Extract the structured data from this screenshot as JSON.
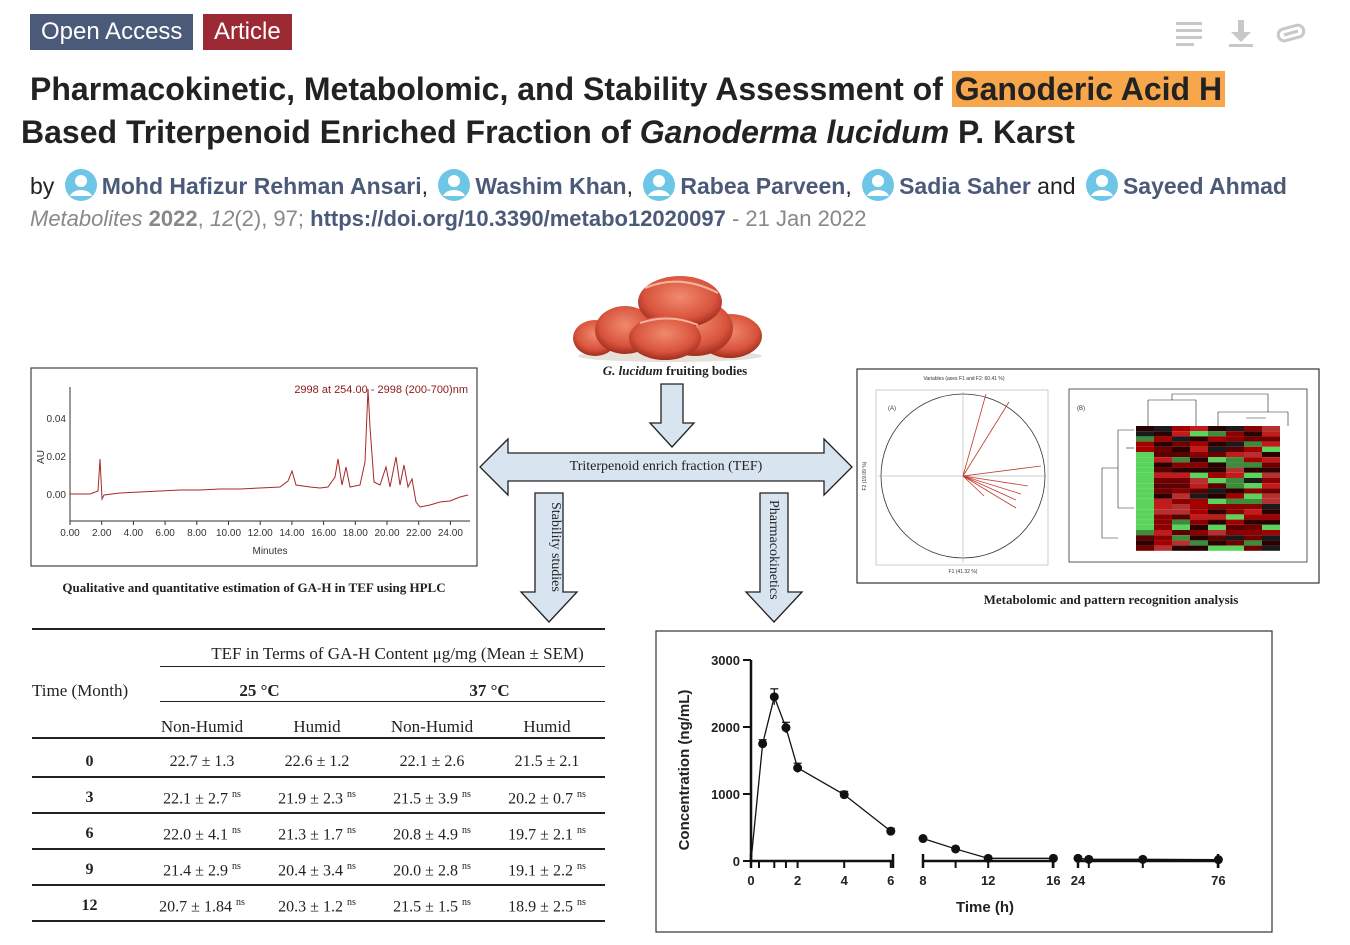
{
  "badges": {
    "open_access": "Open Access",
    "article": "Article"
  },
  "toolbar": {
    "icons": [
      "list-icon",
      "download-icon",
      "link-icon"
    ]
  },
  "title": {
    "part1": "Pharmacokinetic, Metabolomic, and Stability Assessment of ",
    "highlight": "Ganoderic Acid H",
    "part2": " Based Triterpenoid Enriched Fraction of ",
    "italic": "Ganoderma lucidum",
    "part3": " P. Karst"
  },
  "authors": {
    "by": "by",
    "names": [
      "Mohd Hafizur Rehman Ansari",
      "Washim Khan",
      "Rabea Parveen",
      "Sadia Saher",
      "Sayeed Ahmad"
    ],
    "and": "and"
  },
  "citation": {
    "journal": "Metabolites",
    "year": "2022",
    "volume": "12",
    "issue": "(2)",
    "pages": ", 97; ",
    "doi": "https://doi.org/10.3390/metabo12020097",
    "date": " - 21 Jan 2022"
  },
  "abstract": {
    "fruiting_label_italic": "G. lucidum",
    "fruiting_label_rest": " fruiting bodies",
    "tef_label": "Triterpenoid enrich fraction (TEF)",
    "stability_label": "Stability studies",
    "pk_label": "Pharmacokinetics",
    "hplc_caption": "Qualitative and quantitative estimation of GA-H in TEF using HPLC",
    "metabolomic_caption": "Metabolomic and pattern recognition analysis",
    "hplc": {
      "header": "2998 at 254.00 - 2998 (200-700)nm",
      "ylabel": "AU",
      "xlabel": "Minutes",
      "yticks": [
        "0.04",
        "0.02",
        "0.00"
      ],
      "xticks": [
        "0.00",
        "2.00",
        "4.00",
        "6.00",
        "8.00",
        "10.00",
        "12.00",
        "14.00",
        "16.00",
        "18.00",
        "20.00",
        "22.00",
        "24.00"
      ]
    },
    "pca": {
      "title": "Variables (axes F1 and F2: 60.41 %)",
      "panel": "(A)",
      "xlabel": "F1 (41.32 %)",
      "ylabel": "F2 (19.09 %)"
    },
    "heatmap": {
      "panel": "(B)"
    },
    "stability_table": {
      "group_header": "TEF in Terms of GA-H Content μg/mg (Mean ± SEM)",
      "time_header": "Time (Month)",
      "temps": [
        "25 °C",
        "37 °C"
      ],
      "conditions": [
        "Non-Humid",
        "Humid",
        "Non-Humid",
        "Humid"
      ],
      "sup": "ns",
      "rows": [
        {
          "time": "0",
          "values": [
            "22.7 ± 1.3",
            "22.6 ± 1.2",
            "22.1 ± 2.6",
            "21.5 ± 2.1"
          ],
          "ns": false
        },
        {
          "time": "3",
          "values": [
            "22.1 ± 2.7",
            "21.9 ± 2.3",
            "21.5 ± 3.9",
            "20.2 ± 0.7"
          ],
          "ns": true
        },
        {
          "time": "6",
          "values": [
            "22.0 ± 4.1",
            "21.3 ± 1.7",
            "20.8 ± 4.9",
            "19.7 ± 2.1"
          ],
          "ns": true
        },
        {
          "time": "9",
          "values": [
            "21.4 ± 2.9",
            "20.4 ± 3.4",
            "20.0 ± 2.8",
            "19.1 ± 2.2"
          ],
          "ns": true
        },
        {
          "time": "12",
          "values": [
            "20.7 ± 1.84",
            "20.3 ± 1.2",
            "21.5 ± 1.5",
            "18.9 ± 2.5"
          ],
          "ns": true
        }
      ]
    }
  },
  "chart_data": {
    "type": "line",
    "xlabel": "Time (h)",
    "ylabel": "Concentration (ng/mL)",
    "ylim": [
      0,
      3000
    ],
    "yticks": [
      "0",
      "1000",
      "2000",
      "3000"
    ],
    "xticks": [
      "0",
      "2",
      "4",
      "6",
      "8",
      "12",
      "16",
      "24",
      "76"
    ],
    "broken_x_axis": true,
    "x": [
      0,
      0.5,
      1,
      1.5,
      2,
      4,
      6,
      8,
      10,
      12,
      16,
      24,
      28,
      48,
      76
    ],
    "y": [
      0,
      1750,
      2450,
      1990,
      1390,
      990,
      445,
      335,
      180,
      40,
      40,
      40,
      25,
      25,
      20
    ],
    "error": [
      0,
      60,
      120,
      80,
      70,
      50,
      45,
      20,
      15,
      10,
      10,
      10,
      10,
      10,
      10
    ]
  }
}
